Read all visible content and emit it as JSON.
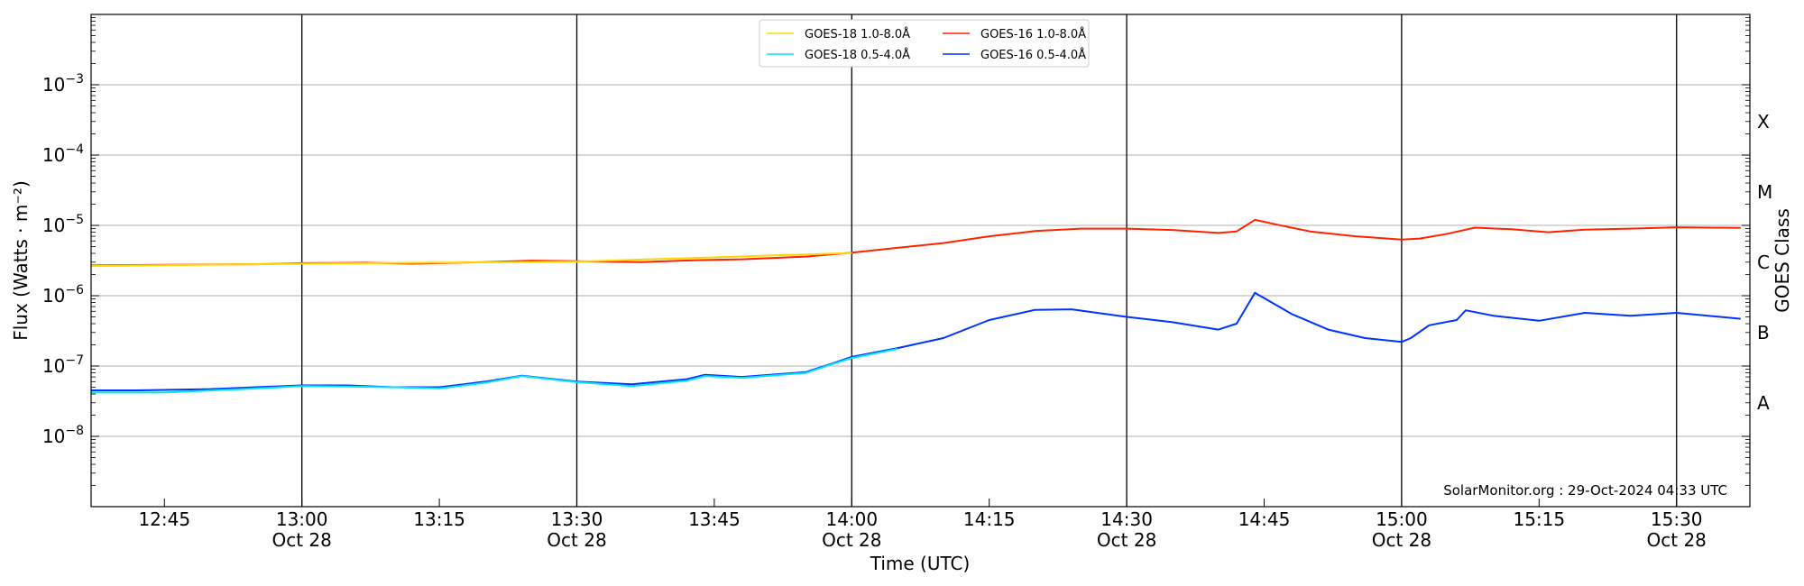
{
  "chart_data": {
    "type": "line",
    "title": "",
    "xlabel": "Time (UTC)",
    "ylabel": "Flux (Watts · m⁻²)",
    "y2label": "GOES Class",
    "yscale": "log",
    "ylim": [
      1e-09,
      0.01
    ],
    "xlim": [
      "2024-10-28 12:37",
      "2024-10-28 15:38"
    ],
    "grid": "horizontal at decades; vertical at each half hour",
    "y_ticks": [
      {
        "value": 1e-08,
        "base": "10",
        "exp": "−8"
      },
      {
        "value": 1e-07,
        "base": "10",
        "exp": "−7"
      },
      {
        "value": 1e-06,
        "base": "10",
        "exp": "−6"
      },
      {
        "value": 1e-05,
        "base": "10",
        "exp": "−5"
      },
      {
        "value": 0.0001,
        "base": "10",
        "exp": "−4"
      },
      {
        "value": 0.001,
        "base": "10",
        "exp": "−3"
      }
    ],
    "x_ticks": [
      {
        "t": "2024-10-28 12:45",
        "label": "12:45",
        "sub": ""
      },
      {
        "t": "2024-10-28 13:00",
        "label": "13:00",
        "sub": "Oct 28"
      },
      {
        "t": "2024-10-28 13:15",
        "label": "13:15",
        "sub": ""
      },
      {
        "t": "2024-10-28 13:30",
        "label": "13:30",
        "sub": "Oct 28"
      },
      {
        "t": "2024-10-28 13:45",
        "label": "13:45",
        "sub": ""
      },
      {
        "t": "2024-10-28 14:00",
        "label": "14:00",
        "sub": "Oct 28"
      },
      {
        "t": "2024-10-28 14:15",
        "label": "14:15",
        "sub": ""
      },
      {
        "t": "2024-10-28 14:30",
        "label": "14:30",
        "sub": "Oct 28"
      },
      {
        "t": "2024-10-28 14:45",
        "label": "14:45",
        "sub": ""
      },
      {
        "t": "2024-10-28 15:00",
        "label": "15:00",
        "sub": "Oct 28"
      },
      {
        "t": "2024-10-28 15:15",
        "label": "15:15",
        "sub": ""
      },
      {
        "t": "2024-10-28 15:30",
        "label": "15:30",
        "sub": "Oct 28"
      }
    ],
    "class_labels": [
      {
        "label": "A",
        "value": 3e-08
      },
      {
        "label": "B",
        "value": 3e-07
      },
      {
        "label": "C",
        "value": 3e-06
      },
      {
        "label": "M",
        "value": 3e-05
      },
      {
        "label": "X",
        "value": 0.0003
      }
    ],
    "legend_position": "upper-center",
    "legend": [
      {
        "name": "GOES-18 1.0-8.0Å",
        "color": "#ffd700"
      },
      {
        "name": "GOES-18 0.5-4.0Å",
        "color": "#00e5ff"
      },
      {
        "name": "GOES-16 1.0-8.0Å",
        "color": "#ff2200"
      },
      {
        "name": "GOES-16 0.5-4.0Å",
        "color": "#0033ff"
      }
    ],
    "credit": "SolarMonitor.org : 29-Oct-2024 04:33 UTC",
    "series": [
      {
        "name": "GOES-16 1.0-8.0Å",
        "color": "#ff2200",
        "x": [
          "2024-10-28 12:37",
          "2024-10-28 12:45",
          "2024-10-28 12:55",
          "2024-10-28 13:00",
          "2024-10-28 13:07",
          "2024-10-28 13:12",
          "2024-10-28 13:20",
          "2024-10-28 13:25",
          "2024-10-28 13:30",
          "2024-10-28 13:37",
          "2024-10-28 13:43",
          "2024-10-28 13:48",
          "2024-10-28 13:55",
          "2024-10-28 14:00",
          "2024-10-28 14:05",
          "2024-10-28 14:10",
          "2024-10-28 14:15",
          "2024-10-28 14:20",
          "2024-10-28 14:25",
          "2024-10-28 14:30",
          "2024-10-28 14:35",
          "2024-10-28 14:40",
          "2024-10-28 14:42",
          "2024-10-28 14:44",
          "2024-10-28 14:46",
          "2024-10-28 14:50",
          "2024-10-28 14:55",
          "2024-10-28 15:00",
          "2024-10-28 15:02",
          "2024-10-28 15:05",
          "2024-10-28 15:08",
          "2024-10-28 15:12",
          "2024-10-28 15:16",
          "2024-10-28 15:20",
          "2024-10-28 15:25",
          "2024-10-28 15:30",
          "2024-10-28 15:37"
        ],
        "values": [
          2.7e-06,
          2.75e-06,
          2.8e-06,
          2.9e-06,
          2.95e-06,
          2.85e-06,
          3e-06,
          3.15e-06,
          3.1e-06,
          3e-06,
          3.2e-06,
          3.3e-06,
          3.6e-06,
          4.1e-06,
          4.8e-06,
          5.6e-06,
          7e-06,
          8.3e-06,
          9e-06,
          9e-06,
          8.6e-06,
          7.8e-06,
          8.2e-06,
          1.2e-05,
          1.05e-05,
          8.2e-06,
          7e-06,
          6.3e-06,
          6.5e-06,
          7.6e-06,
          9.3e-06,
          8.8e-06,
          8e-06,
          8.7e-06,
          9e-06,
          9.4e-06,
          9.2e-06
        ]
      },
      {
        "name": "GOES-16 0.5-4.0Å",
        "color": "#0033ff",
        "x": [
          "2024-10-28 12:37",
          "2024-10-28 12:42",
          "2024-10-28 12:50",
          "2024-10-28 12:55",
          "2024-10-28 13:00",
          "2024-10-28 13:05",
          "2024-10-28 13:10",
          "2024-10-28 13:15",
          "2024-10-28 13:20",
          "2024-10-28 13:24",
          "2024-10-28 13:30",
          "2024-10-28 13:36",
          "2024-10-28 13:42",
          "2024-10-28 13:44",
          "2024-10-28 13:48",
          "2024-10-28 13:55",
          "2024-10-28 13:58",
          "2024-10-28 14:00",
          "2024-10-28 14:05",
          "2024-10-28 14:10",
          "2024-10-28 14:15",
          "2024-10-28 14:20",
          "2024-10-28 14:24",
          "2024-10-28 14:30",
          "2024-10-28 14:35",
          "2024-10-28 14:40",
          "2024-10-28 14:42",
          "2024-10-28 14:44",
          "2024-10-28 14:48",
          "2024-10-28 14:52",
          "2024-10-28 14:56",
          "2024-10-28 15:00",
          "2024-10-28 15:01",
          "2024-10-28 15:03",
          "2024-10-28 15:06",
          "2024-10-28 15:07",
          "2024-10-28 15:10",
          "2024-10-28 15:15",
          "2024-10-28 15:20",
          "2024-10-28 15:25",
          "2024-10-28 15:30",
          "2024-10-28 15:37"
        ],
        "values": [
          4.5e-08,
          4.5e-08,
          4.7e-08,
          5e-08,
          5.3e-08,
          5.3e-08,
          5e-08,
          5e-08,
          6e-08,
          7.3e-08,
          6e-08,
          5.5e-08,
          6.5e-08,
          7.5e-08,
          7e-08,
          8.2e-08,
          1.1e-07,
          1.35e-07,
          1.8e-07,
          2.5e-07,
          4.5e-07,
          6.3e-07,
          6.4e-07,
          5e-07,
          4.2e-07,
          3.3e-07,
          4e-07,
          1.1e-06,
          5.5e-07,
          3.3e-07,
          2.5e-07,
          2.2e-07,
          2.5e-07,
          3.8e-07,
          4.5e-07,
          6.2e-07,
          5.2e-07,
          4.4e-07,
          5.7e-07,
          5.2e-07,
          5.7e-07,
          4.7e-07
        ]
      },
      {
        "name": "GOES-18 0.5-4.0Å",
        "color": "#00e5ff",
        "x": [
          "2024-10-28 12:37",
          "2024-10-28 12:45",
          "2024-10-28 12:55",
          "2024-10-28 13:00",
          "2024-10-28 13:05",
          "2024-10-28 13:10",
          "2024-10-28 13:15",
          "2024-10-28 13:20",
          "2024-10-28 13:24",
          "2024-10-28 13:30",
          "2024-10-28 13:36",
          "2024-10-28 13:42",
          "2024-10-28 13:44",
          "2024-10-28 13:48",
          "2024-10-28 13:55",
          "2024-10-28 13:58",
          "2024-10-28 14:00",
          "2024-10-28 14:05"
        ],
        "values": [
          4.2e-08,
          4.2e-08,
          4.8e-08,
          5.2e-08,
          5.1e-08,
          5e-08,
          4.8e-08,
          5.8e-08,
          7.2e-08,
          5.9e-08,
          5.2e-08,
          6.2e-08,
          7.2e-08,
          6.8e-08,
          8e-08,
          1.08e-07,
          1.3e-07,
          1.75e-07
        ]
      },
      {
        "name": "GOES-18 1.0-8.0Å",
        "color": "#ffd700",
        "x": [
          "2024-10-28 12:37",
          "2024-10-28 13:00",
          "2024-10-28 13:30",
          "2024-10-28 14:00"
        ],
        "values": [
          2.65e-06,
          2.85e-06,
          3.05e-06,
          4.05e-06
        ]
      }
    ]
  }
}
